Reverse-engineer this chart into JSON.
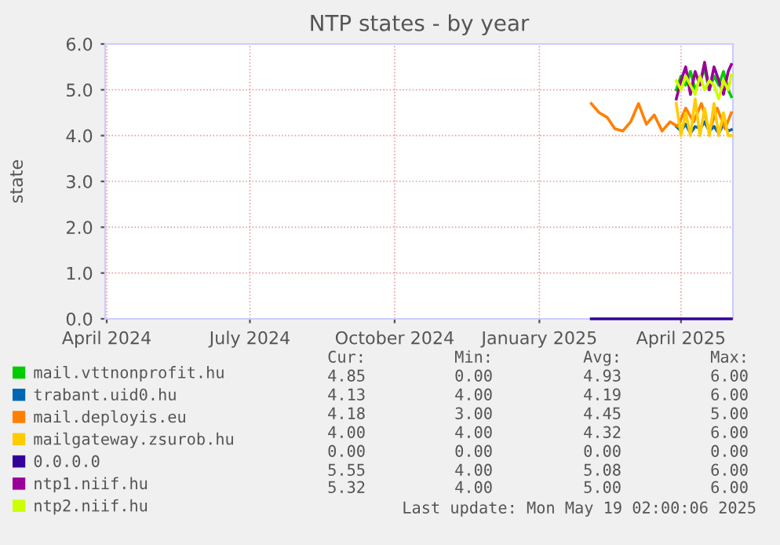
{
  "chart_data": {
    "type": "line",
    "title": "NTP states - by year",
    "ylabel": "state",
    "xlim": [
      "2024-03-31",
      "2025-05-04"
    ],
    "ylim": [
      0,
      6
    ],
    "xticks": [
      {
        "value": "2024-04-01",
        "label": "April 2024"
      },
      {
        "value": "2024-07-01",
        "label": "July 2024"
      },
      {
        "value": "2024-10-01",
        "label": "October 2024"
      },
      {
        "value": "2025-01-01",
        "label": "January 2025"
      },
      {
        "value": "2025-04-01",
        "label": "April 2025"
      }
    ],
    "yticks": [
      {
        "value": 0,
        "label": "0.0"
      },
      {
        "value": 1,
        "label": "1.0"
      },
      {
        "value": 2,
        "label": "2.0"
      },
      {
        "value": 3,
        "label": "3.0"
      },
      {
        "value": 4,
        "label": "4.0"
      },
      {
        "value": 5,
        "label": "5.0"
      },
      {
        "value": 6,
        "label": "6.0"
      }
    ],
    "grid": true,
    "legend": "bottom",
    "series": [
      {
        "name": "mail.vttnonprofit.hu",
        "color": "#00cc00",
        "x": [
          "2025-03-29",
          "2025-04-01",
          "2025-04-04",
          "2025-04-07",
          "2025-04-10",
          "2025-04-13",
          "2025-04-16",
          "2025-04-19",
          "2025-04-22",
          "2025-04-25",
          "2025-04-28",
          "2025-05-01",
          "2025-05-03"
        ],
        "values": [
          5.0,
          5.3,
          5.1,
          5.4,
          5.0,
          5.2,
          5.45,
          5.0,
          5.3,
          5.1,
          5.4,
          5.0,
          4.85
        ]
      },
      {
        "name": "trabant.uid0.hu",
        "color": "#0066b3",
        "x": [
          "2025-03-29",
          "2025-04-01",
          "2025-04-04",
          "2025-04-07",
          "2025-04-10",
          "2025-04-13",
          "2025-04-16",
          "2025-04-19",
          "2025-04-22",
          "2025-04-25",
          "2025-04-28",
          "2025-05-01",
          "2025-05-03"
        ],
        "values": [
          4.2,
          4.1,
          4.25,
          4.05,
          4.2,
          4.15,
          4.3,
          4.1,
          4.2,
          4.05,
          4.25,
          4.1,
          4.13
        ]
      },
      {
        "name": "mail.deployis.eu",
        "color": "#ff8000",
        "x": [
          "2025-02-03",
          "2025-02-08",
          "2025-02-13",
          "2025-02-18",
          "2025-02-23",
          "2025-02-28",
          "2025-03-05",
          "2025-03-10",
          "2025-03-15",
          "2025-03-20",
          "2025-03-25",
          "2025-03-30",
          "2025-04-04",
          "2025-04-09",
          "2025-04-14",
          "2025-04-19",
          "2025-04-24",
          "2025-04-29",
          "2025-05-03"
        ],
        "values": [
          4.7,
          4.5,
          4.4,
          4.15,
          4.1,
          4.3,
          4.7,
          4.25,
          4.45,
          4.1,
          4.3,
          4.2,
          4.6,
          4.3,
          4.7,
          4.1,
          4.6,
          4.15,
          4.5
        ]
      },
      {
        "name": "mailgateway.zsurob.hu",
        "color": "#ffcc00",
        "x": [
          "2025-03-29",
          "2025-04-01",
          "2025-04-04",
          "2025-04-07",
          "2025-04-10",
          "2025-04-13",
          "2025-04-16",
          "2025-04-19",
          "2025-04-22",
          "2025-04-25",
          "2025-04-28",
          "2025-05-01",
          "2025-05-03"
        ],
        "values": [
          4.7,
          4.0,
          4.5,
          4.0,
          4.8,
          4.0,
          4.6,
          4.0,
          4.7,
          4.0,
          4.5,
          4.0,
          4.0
        ]
      },
      {
        "name": "0.0.0.0",
        "color": "#330099",
        "x": [
          "2025-02-03",
          "2025-05-03"
        ],
        "values": [
          0,
          0
        ]
      },
      {
        "name": "ntp1.niif.hu",
        "color": "#990099",
        "x": [
          "2025-03-29",
          "2025-04-01",
          "2025-04-04",
          "2025-04-07",
          "2025-04-10",
          "2025-04-13",
          "2025-04-16",
          "2025-04-19",
          "2025-04-22",
          "2025-04-25",
          "2025-04-28",
          "2025-05-01",
          "2025-05-03"
        ],
        "values": [
          4.8,
          5.2,
          5.5,
          4.9,
          5.4,
          5.1,
          5.6,
          5.0,
          5.5,
          5.2,
          4.9,
          5.4,
          5.55
        ]
      },
      {
        "name": "ntp2.niif.hu",
        "color": "#ccff00",
        "x": [
          "2025-03-29",
          "2025-04-01",
          "2025-04-04",
          "2025-04-07",
          "2025-04-10",
          "2025-04-13",
          "2025-04-16",
          "2025-04-19",
          "2025-04-22",
          "2025-04-25",
          "2025-04-28",
          "2025-05-01",
          "2025-05-03"
        ],
        "values": [
          5.2,
          5.0,
          5.3,
          5.1,
          4.9,
          5.3,
          5.0,
          5.2,
          5.1,
          4.8,
          5.2,
          5.0,
          5.32
        ]
      }
    ],
    "annotations": [
      "Cur:",
      "Min:",
      "Avg:",
      "Max:",
      "4.85",
      "0.00",
      "4.93",
      "6.00",
      "4.13",
      "4.00",
      "4.19",
      "6.00",
      "4.18",
      "3.00",
      "4.45",
      "5.00",
      "4.00",
      "4.00",
      "4.32",
      "6.00",
      "0.00",
      "0.00",
      "0.00",
      "0.00",
      "5.55",
      "4.00",
      "5.08",
      "6.00",
      "5.32",
      "4.00",
      "5.00",
      "6.00",
      "Last update: Mon May 19 02:00:06 2025"
    ]
  }
}
